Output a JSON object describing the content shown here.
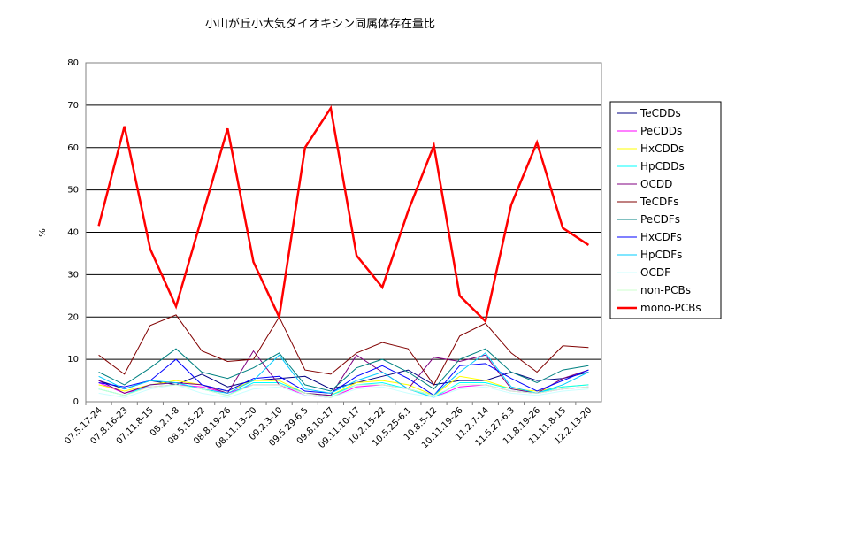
{
  "chart_data": {
    "type": "line",
    "title": "小山が丘小大気ダイオキシン同属体存在量比",
    "y_label": "%",
    "categories": [
      "07.5.17-24",
      "07.8.16-23",
      "07.11.8-15",
      "08.2.1-8",
      "08.5.15-22",
      "08.8.19-26",
      "08.11.13-20",
      "09.2.3-10",
      "09.5.29-6.5",
      "09.8.10-17",
      "09.11.10-17",
      "10.2.15-22",
      "10.5.25-6.1",
      "10.8.5-12",
      "10.11.19-26",
      "11.2.7-14",
      "11.5.27-6.3",
      "11.8.19-26",
      "11.11.8-15",
      "12.2.13-20"
    ],
    "ylim": [
      0,
      80
    ],
    "yticks": [
      0,
      10,
      20,
      30,
      40,
      50,
      60,
      70,
      80
    ],
    "grid": true,
    "series": [
      {
        "name": "TeCDDs",
        "color": "#000080",
        "values": [
          5,
          3,
          5,
          4,
          6.5,
          3.5,
          5,
          5.5,
          6,
          3,
          4.5,
          6,
          7.5,
          4,
          5,
          5,
          7,
          5,
          5.5,
          7
        ]
      },
      {
        "name": "PeCDDs",
        "color": "#ff00ff",
        "values": [
          4.5,
          2,
          3.5,
          4,
          3.5,
          2,
          4,
          4,
          1.5,
          1,
          3.5,
          4,
          3,
          1,
          3.5,
          4,
          2.5,
          2,
          3,
          3.5
        ]
      },
      {
        "name": "HxCDDs",
        "color": "#ffff00",
        "values": [
          4,
          2.5,
          4,
          5,
          4,
          2.5,
          5,
          5,
          2,
          1.5,
          4.5,
          5,
          4,
          1.5,
          6,
          5,
          3,
          2.5,
          3.5,
          4
        ]
      },
      {
        "name": "HpCDDs",
        "color": "#00ffff",
        "values": [
          3,
          1.5,
          4,
          4.5,
          3,
          1.5,
          4.5,
          4.5,
          2,
          1.5,
          4,
          4.5,
          3,
          1,
          4.5,
          4.5,
          3,
          2,
          3.5,
          4
        ]
      },
      {
        "name": "OCDD",
        "color": "#800080",
        "values": [
          5,
          2,
          4,
          4.5,
          4,
          2,
          12,
          4,
          2,
          1.5,
          11,
          7,
          3,
          10.5,
          9.5,
          11,
          3,
          2,
          5.5,
          7.5
        ]
      },
      {
        "name": "TeCDFs",
        "color": "#800000",
        "values": [
          11,
          6.5,
          18,
          20.5,
          12,
          9.5,
          10,
          20,
          7.5,
          6.5,
          11.5,
          14,
          12.5,
          4,
          15.5,
          18.5,
          11.5,
          7,
          13.2,
          12.8
        ]
      },
      {
        "name": "PeCDFs",
        "color": "#008080",
        "values": [
          7,
          4,
          8,
          12.5,
          7,
          5.5,
          8,
          11.5,
          4,
          2.5,
          8,
          10,
          7,
          3,
          10,
          12.5,
          7,
          4.5,
          7.5,
          8.5
        ]
      },
      {
        "name": "HxCDFs",
        "color": "#0000ff",
        "values": [
          4.5,
          3.5,
          5,
          10,
          4,
          2.5,
          5.5,
          6,
          2.5,
          2,
          6,
          8.5,
          5.5,
          1.5,
          8.5,
          9,
          5.5,
          2.5,
          5,
          7.5
        ]
      },
      {
        "name": "HpCDFs",
        "color": "#00ccff",
        "values": [
          6,
          3,
          5,
          4.5,
          3,
          2,
          5,
          11,
          3,
          2,
          5,
          7,
          3,
          1.5,
          7,
          11.5,
          3.5,
          2,
          4,
          7
        ]
      },
      {
        "name": "OCDF",
        "color": "#ccffff",
        "values": [
          2,
          1,
          3,
          4,
          2,
          1,
          3,
          3.5,
          1.5,
          1,
          3,
          3.5,
          2,
          1,
          3,
          3.5,
          2,
          1.5,
          2.5,
          3
        ]
      },
      {
        "name": "non-PCBs",
        "color": "#ccffcc",
        "values": [
          3,
          1.5,
          3.5,
          4,
          3,
          1.5,
          4,
          4,
          2,
          1,
          4,
          4,
          3,
          1.5,
          4,
          4,
          2.5,
          2,
          3,
          3.5
        ]
      },
      {
        "name": "mono-PCBs",
        "color": "#ff0000",
        "values": [
          41.5,
          65,
          36,
          22.5,
          43.5,
          64.5,
          33,
          20,
          60,
          69.3,
          34.5,
          27,
          45,
          60.5,
          25,
          19,
          46.5,
          61.2,
          41,
          37
        ]
      }
    ]
  }
}
